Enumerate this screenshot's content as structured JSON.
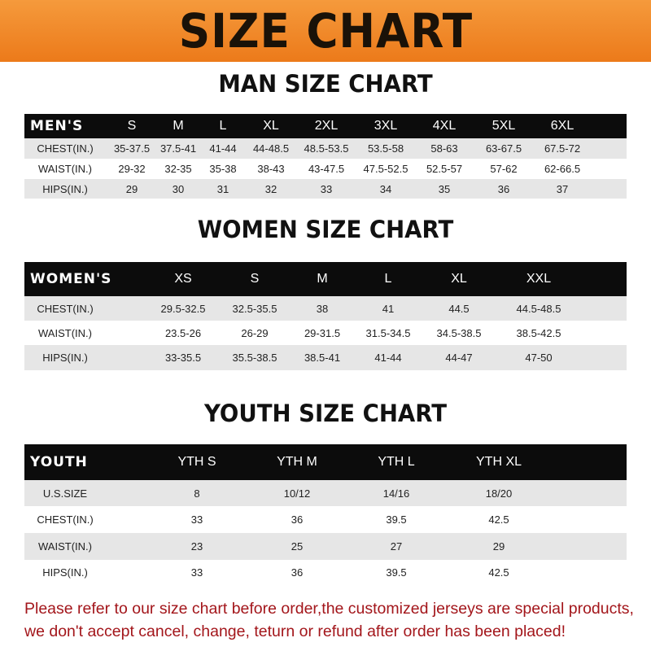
{
  "banner_title": "SIZE CHART",
  "men": {
    "title": "MAN SIZE CHART",
    "header": [
      "MEN'S",
      "S",
      "M",
      "L",
      "XL",
      "2XL",
      "3XL",
      "4XL",
      "5XL",
      "6XL"
    ],
    "rows": [
      [
        "CHEST(IN.)",
        "35-37.5",
        "37.5-41",
        "41-44",
        "44-48.5",
        "48.5-53.5",
        "53.5-58",
        "58-63",
        "63-67.5",
        "67.5-72"
      ],
      [
        "WAIST(IN.)",
        "29-32",
        "32-35",
        "35-38",
        "38-43",
        "43-47.5",
        "47.5-52.5",
        "52.5-57",
        "57-62",
        "62-66.5"
      ],
      [
        "HIPS(IN.)",
        "29",
        "30",
        "31",
        "32",
        "33",
        "34",
        "35",
        "36",
        "37"
      ]
    ]
  },
  "women": {
    "title": "WOMEN SIZE CHART",
    "header": [
      "WOMEN'S",
      "XS",
      "S",
      "M",
      "L",
      "XL",
      "XXL"
    ],
    "rows": [
      [
        "CHEST(IN.)",
        "29.5-32.5",
        "32.5-35.5",
        "38",
        "41",
        "44.5",
        "44.5-48.5"
      ],
      [
        "WAIST(IN.)",
        "23.5-26",
        "26-29",
        "29-31.5",
        "31.5-34.5",
        "34.5-38.5",
        "38.5-42.5"
      ],
      [
        "HIPS(IN.)",
        "33-35.5",
        "35.5-38.5",
        "38.5-41",
        "41-44",
        "44-47",
        "47-50"
      ]
    ]
  },
  "youth": {
    "title": "YOUTH SIZE CHART",
    "header": [
      "YOUTH",
      "YTH S",
      "YTH M",
      "YTH L",
      "YTH XL"
    ],
    "rows": [
      [
        "U.S.SIZE",
        "8",
        "10/12",
        "14/16",
        "18/20"
      ],
      [
        "CHEST(IN.)",
        "33",
        "36",
        "39.5",
        "42.5"
      ],
      [
        "WAIST(IN.)",
        "23",
        "25",
        "27",
        "29"
      ],
      [
        "HIPS(IN.)",
        "33",
        "36",
        "39.5",
        "42.5"
      ]
    ]
  },
  "note": "Please refer to our size chart before order,the customized jerseys are special products, we don't accept cancel, change, teturn or refund after order has been placed!",
  "colors": {
    "banner": "#ec7a1a",
    "header_row": "#0c0c0c",
    "stripe": "#e6e6e6",
    "note": "#a3161b"
  }
}
